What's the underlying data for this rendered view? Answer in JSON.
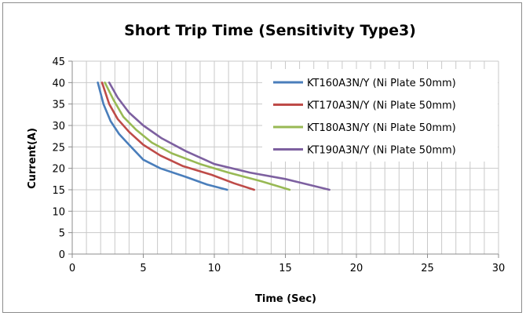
{
  "chart_data": {
    "type": "line",
    "title": "Short Trip Time (Sensitivity Type3)",
    "xlabel": "Time (Sec)",
    "ylabel": "Current(A)",
    "xlim": [
      0,
      30
    ],
    "ylim": [
      0,
      45
    ],
    "xticks": [
      0,
      5,
      10,
      15,
      20,
      25,
      30
    ],
    "yticks": [
      0,
      5,
      10,
      15,
      20,
      25,
      30,
      35,
      40,
      45
    ],
    "grid": true,
    "legend_position": "upper-right",
    "series": [
      {
        "name": "KT160A3N/Y (Ni Plate 50mm)",
        "color": "#4a7ebb",
        "points": [
          [
            1.8,
            40
          ],
          [
            2.2,
            35
          ],
          [
            2.7,
            31
          ],
          [
            3.3,
            28
          ],
          [
            4.0,
            25.5
          ],
          [
            5.0,
            22
          ],
          [
            6.2,
            20
          ],
          [
            8.0,
            18
          ],
          [
            9.5,
            16.2
          ],
          [
            10.9,
            15
          ]
        ]
      },
      {
        "name": "KT170A3N/Y (Ni Plate 50mm)",
        "color": "#be4b48",
        "points": [
          [
            2.1,
            40
          ],
          [
            2.6,
            35
          ],
          [
            3.2,
            31.5
          ],
          [
            4.0,
            28.5
          ],
          [
            5.0,
            25.5
          ],
          [
            6.2,
            23
          ],
          [
            7.8,
            20.5
          ],
          [
            9.8,
            18.5
          ],
          [
            11.4,
            16.5
          ],
          [
            12.8,
            15
          ]
        ]
      },
      {
        "name": "KT180A3N/Y (Ni Plate 50mm)",
        "color": "#98b954",
        "points": [
          [
            2.3,
            40
          ],
          [
            2.9,
            36
          ],
          [
            3.6,
            32
          ],
          [
            4.5,
            29
          ],
          [
            5.6,
            26
          ],
          [
            7.0,
            23.5
          ],
          [
            9.0,
            21
          ],
          [
            11.0,
            19
          ],
          [
            13.3,
            17
          ],
          [
            15.3,
            15
          ]
        ]
      },
      {
        "name": "KT190A3N/Y (Ni Plate 50mm)",
        "color": "#7d60a0",
        "points": [
          [
            2.6,
            40
          ],
          [
            3.2,
            36.5
          ],
          [
            4.0,
            33
          ],
          [
            5.0,
            30
          ],
          [
            6.3,
            27
          ],
          [
            8.0,
            24
          ],
          [
            10.0,
            21
          ],
          [
            12.5,
            19
          ],
          [
            15.0,
            17.5
          ],
          [
            18.1,
            15
          ]
        ]
      }
    ]
  }
}
